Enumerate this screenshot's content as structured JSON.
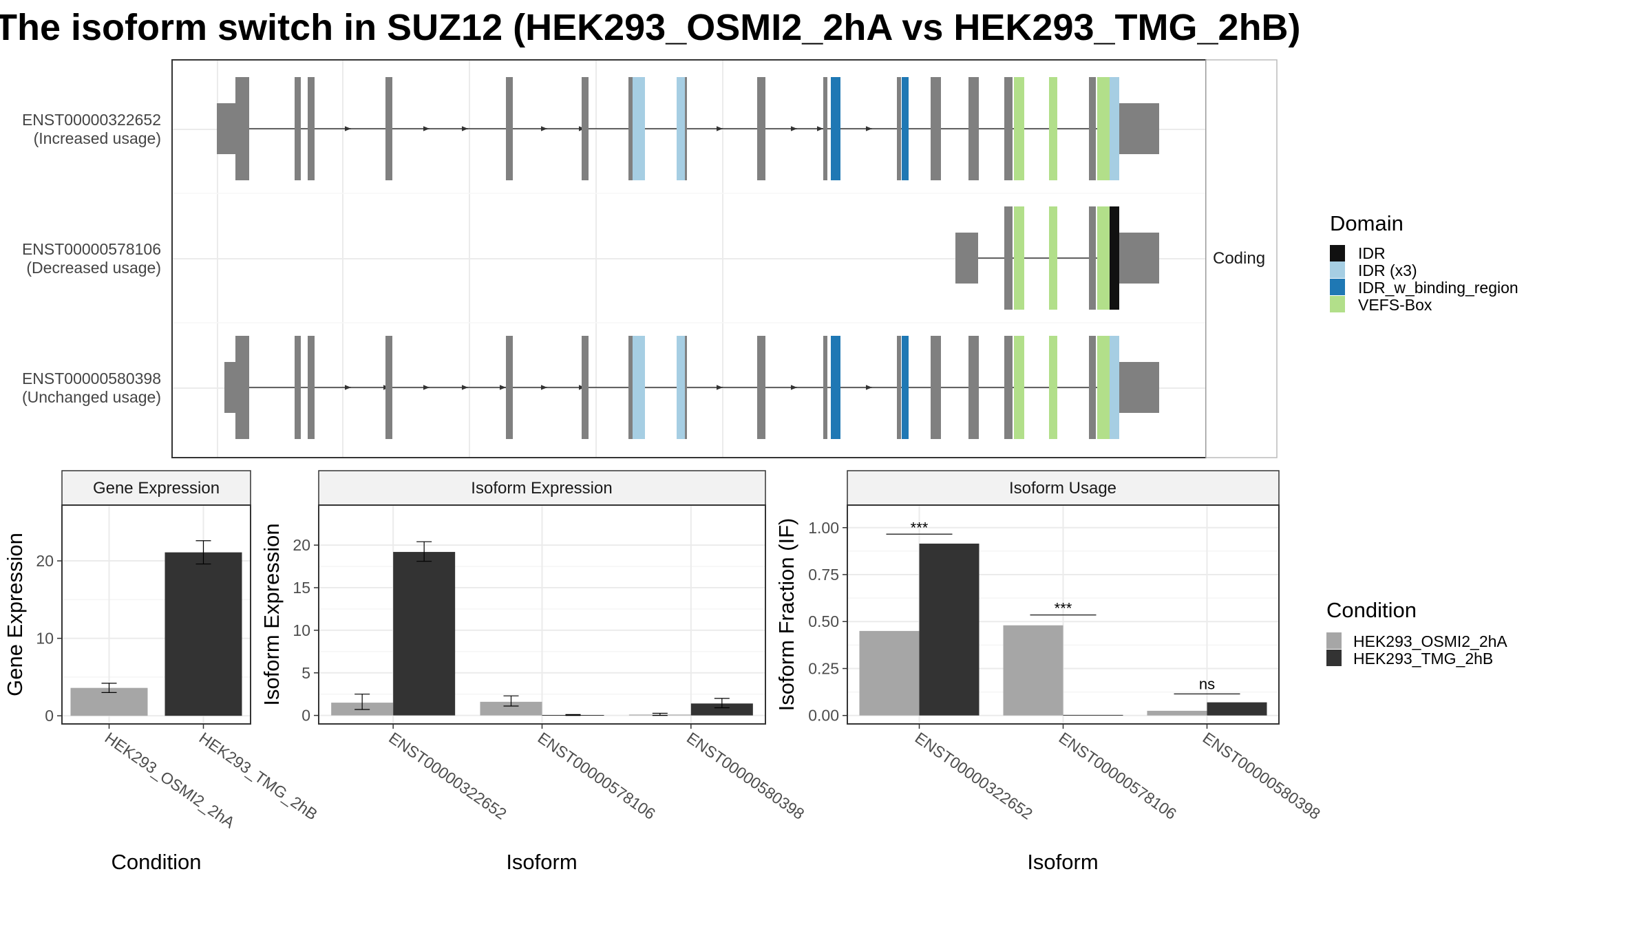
{
  "title": "The isoform switch in SUZ12 (HEK293_OSMI2_2hA vs HEK293_TMG_2hB)",
  "structure": {
    "strip_label": "Coding",
    "transcripts": [
      {
        "id": "ENST00000322652",
        "usage": "(Increased usage)"
      },
      {
        "id": "ENST00000578106",
        "usage": "(Decreased usage)"
      },
      {
        "id": "ENST00000580398",
        "usage": "(Unchanged usage)"
      }
    ],
    "domain_legend": {
      "title": "Domain",
      "items": [
        {
          "label": "IDR",
          "color": "#111111"
        },
        {
          "label": "IDR (x3)",
          "color": "#a6cee3"
        },
        {
          "label": "IDR_w_binding_region",
          "color": "#1f78b4"
        },
        {
          "label": "VEFS-Box",
          "color": "#b2df8a"
        }
      ]
    }
  },
  "condition_legend": {
    "title": "Condition",
    "items": [
      {
        "label": "HEK293_OSMI2_2hA",
        "color": "#a6a6a6"
      },
      {
        "label": "HEK293_TMG_2hB",
        "color": "#333333"
      }
    ]
  },
  "chart_data": [
    {
      "type": "bar",
      "strip_title": "Gene Expression",
      "xlabel": "Condition",
      "ylabel": "Gene Expression",
      "categories": [
        "HEK293_OSMI2_2hA",
        "HEK293_TMG_2hB"
      ],
      "values": [
        3.6,
        21.1
      ],
      "errors": [
        [
          3.0,
          4.2
        ],
        [
          19.6,
          22.6
        ]
      ],
      "ylim": [
        -1.05,
        27.2
      ],
      "yticks": [
        0,
        10,
        20
      ]
    },
    {
      "type": "bar",
      "strip_title": "Isoform Expression",
      "xlabel": "Isoform",
      "ylabel": "Isoform Expression",
      "categories": [
        "ENST00000322652",
        "ENST00000578106",
        "ENST00000580398"
      ],
      "series": [
        {
          "name": "HEK293_OSMI2_2hA",
          "values": [
            1.5,
            1.6,
            0.1
          ],
          "errors": [
            [
              0.7,
              2.5
            ],
            [
              1.1,
              2.3
            ],
            [
              0.0,
              0.25
            ]
          ]
        },
        {
          "name": "HEK293_TMG_2hB",
          "values": [
            19.2,
            0.05,
            1.4
          ],
          "errors": [
            [
              18.1,
              20.4
            ],
            [
              0.0,
              0.1
            ],
            [
              0.9,
              2.0
            ]
          ]
        }
      ],
      "ylim": [
        -1.0,
        24.7
      ],
      "yticks": [
        0,
        5,
        10,
        15,
        20
      ]
    },
    {
      "type": "bar",
      "strip_title": "Isoform Usage",
      "xlabel": "Isoform",
      "ylabel": "Isoform Fraction (IF)",
      "categories": [
        "ENST00000322652",
        "ENST00000578106",
        "ENST00000580398"
      ],
      "series": [
        {
          "name": "HEK293_OSMI2_2hA",
          "values": [
            0.45,
            0.48,
            0.025
          ]
        },
        {
          "name": "HEK293_TMG_2hB",
          "values": [
            0.915,
            0.003,
            0.07
          ]
        }
      ],
      "significance": [
        "***",
        "***",
        "ns"
      ],
      "sig_y": [
        0.965,
        0.535,
        0.115
      ],
      "ylim": [
        -0.045,
        1.12
      ],
      "yticks": [
        0.0,
        0.25,
        0.5,
        0.75,
        1.0
      ],
      "ytick_labels": [
        "0.00",
        "0.25",
        "0.50",
        "0.75",
        "1.00"
      ]
    }
  ]
}
